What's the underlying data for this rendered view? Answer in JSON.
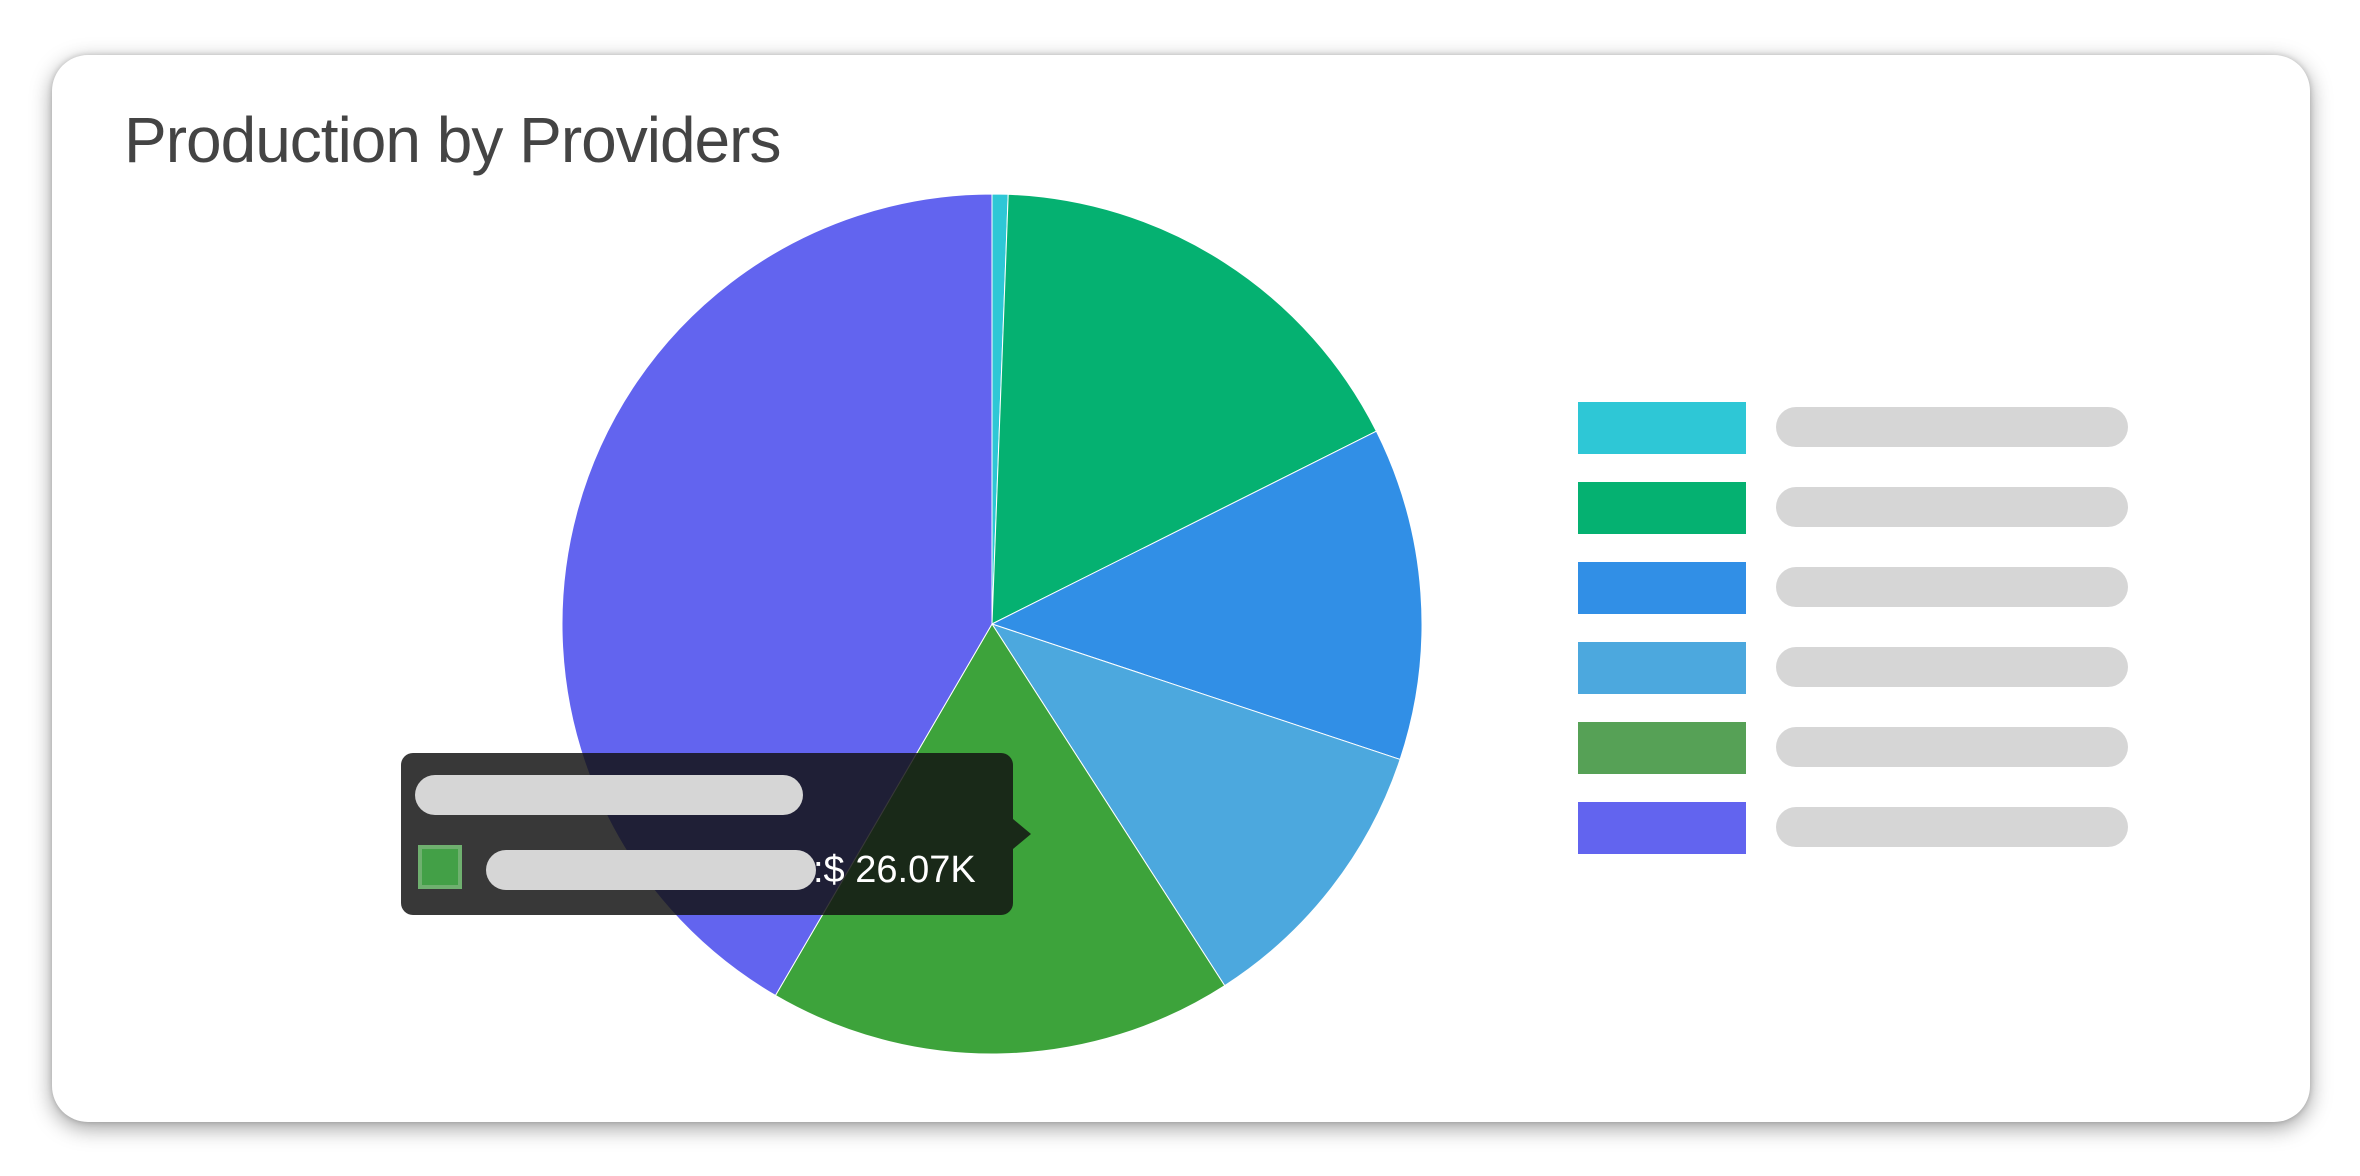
{
  "card": {
    "title": "Production by Providers"
  },
  "chart_data": {
    "type": "pie",
    "title": "Production by Providers",
    "start_angle_deg": 0,
    "direction": "clockwise",
    "slices": [
      {
        "label": "",
        "value": 0.6,
        "color": "#2ec7d6"
      },
      {
        "label": "",
        "value": 17.0,
        "color": "#05b171"
      },
      {
        "label": "",
        "value": 12.5,
        "color": "#318fe6"
      },
      {
        "label": "",
        "value": 10.8,
        "color": "#4ca8de"
      },
      {
        "label": "",
        "value": 17.5,
        "color": "#3da33b"
      },
      {
        "label": "",
        "value": 41.6,
        "color": "#6264ef"
      }
    ],
    "legend_position": "right",
    "legend_labels_redacted": true,
    "legend_swatch_colors": [
      "#2ec7d6",
      "#05b171",
      "#318fe6",
      "#4ca8de",
      "#56a156",
      "#6264ef"
    ]
  },
  "tooltip": {
    "title": "",
    "series_label": "",
    "value_text": ":$ 26.07K",
    "swatch_color": "#43a047"
  }
}
